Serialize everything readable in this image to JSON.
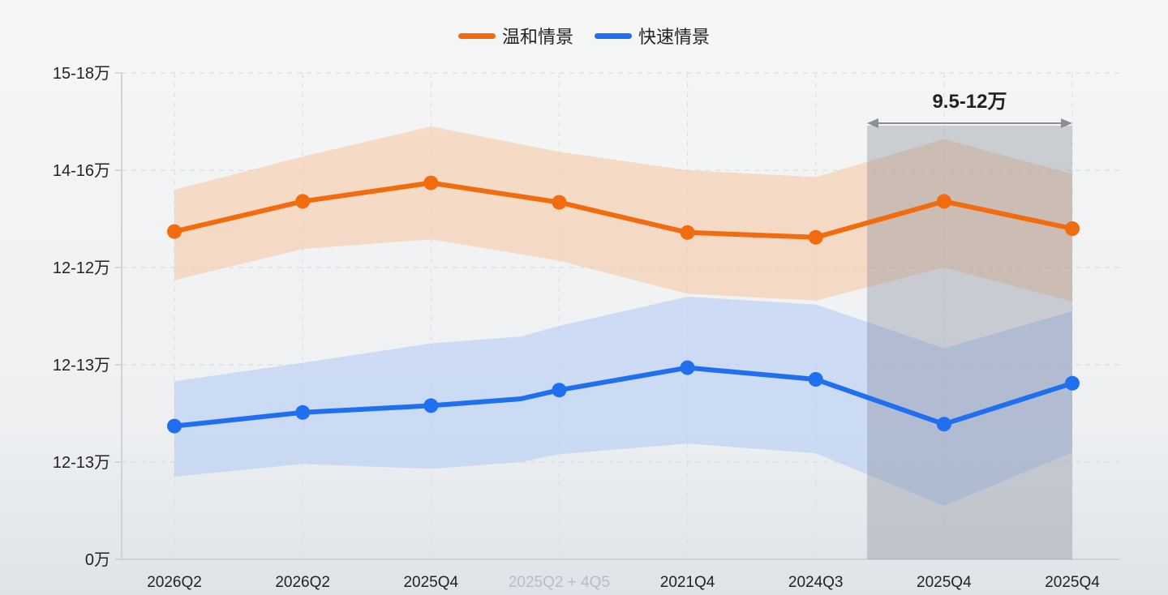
{
  "chart_data": {
    "type": "line",
    "title": "",
    "xlabel": "",
    "ylabel": "",
    "categories": [
      "2026Q2",
      "2026Q2",
      "2025Q4",
      "2025Q2 + 4Q5",
      "2021Q4",
      "2024Q3",
      "2025Q4",
      "2025Q4"
    ],
    "y_ticks": [
      "0万",
      "12-13万",
      "12-13万",
      "12-12万",
      "14-16万",
      "15-18万"
    ],
    "ylim": [
      0,
      5
    ],
    "grid": true,
    "legend_position": "top-center",
    "series": [
      {
        "name": "温和情景",
        "color": "#f26b0f",
        "band_color": "#f7c9a6",
        "x": [
          0,
          1,
          2,
          3,
          4,
          5,
          6,
          7
        ],
        "values": [
          3.37,
          3.68,
          3.87,
          3.67,
          3.36,
          3.31,
          3.68,
          3.4
        ],
        "upper": [
          3.8,
          4.14,
          4.45,
          4.19,
          4.0,
          3.93,
          4.32,
          3.96
        ],
        "lower": [
          2.87,
          3.19,
          3.29,
          3.07,
          2.73,
          2.66,
          3.0,
          2.65
        ],
        "markers": [
          true,
          true,
          true,
          true,
          true,
          true,
          true,
          true
        ]
      },
      {
        "name": "快速情景",
        "color": "#1f6ff0",
        "band_color": "#b6cdf5",
        "x": [
          0,
          1,
          2,
          2.7,
          3,
          4,
          5,
          6,
          7
        ],
        "values": [
          1.37,
          1.51,
          1.58,
          1.65,
          1.74,
          1.97,
          1.85,
          1.39,
          1.81
        ],
        "upper": [
          1.83,
          2.02,
          2.22,
          2.29,
          2.4,
          2.7,
          2.62,
          2.17,
          2.55
        ],
        "lower": [
          0.85,
          0.98,
          0.93,
          1.0,
          1.08,
          1.19,
          1.09,
          0.55,
          1.1
        ],
        "markers": [
          true,
          true,
          true,
          false,
          true,
          true,
          true,
          true,
          true
        ]
      }
    ],
    "annotation": {
      "label": "9.5-12万",
      "x_range": [
        5.4,
        7
      ],
      "highlight": true
    }
  }
}
